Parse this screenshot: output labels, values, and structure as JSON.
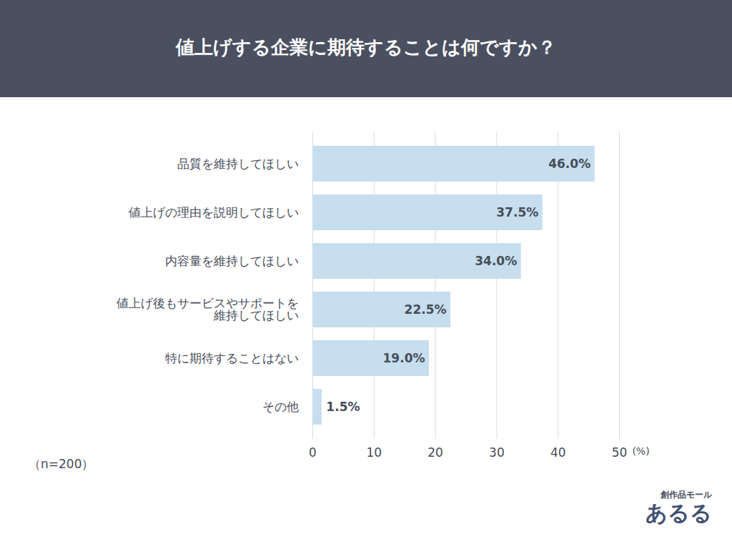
{
  "chart_data": {
    "type": "bar",
    "orientation": "horizontal",
    "title": "値上げする企業に期待することは何ですか？",
    "categories": [
      "品質を維持してほしい",
      "値上げの理由を説明してほしい",
      "内容量を維持してほしい",
      "値上げ後もサービスやサポートを維持してほしい",
      "特に期待することはない",
      "その他"
    ],
    "values": [
      46.0,
      37.5,
      34.0,
      22.5,
      19.0,
      1.5
    ],
    "value_labels": [
      "46.0%",
      "37.5%",
      "34.0%",
      "22.5%",
      "19.0%",
      "1.5%"
    ],
    "data_labels": true,
    "color": "#c6deed",
    "xlim": [
      0,
      50
    ],
    "xticks": [
      0,
      10,
      20,
      30,
      40,
      50
    ],
    "xlabel": "(%)",
    "grid": true,
    "note": "（n=200）",
    "brand": [
      "創作品モール",
      "あるる"
    ]
  }
}
